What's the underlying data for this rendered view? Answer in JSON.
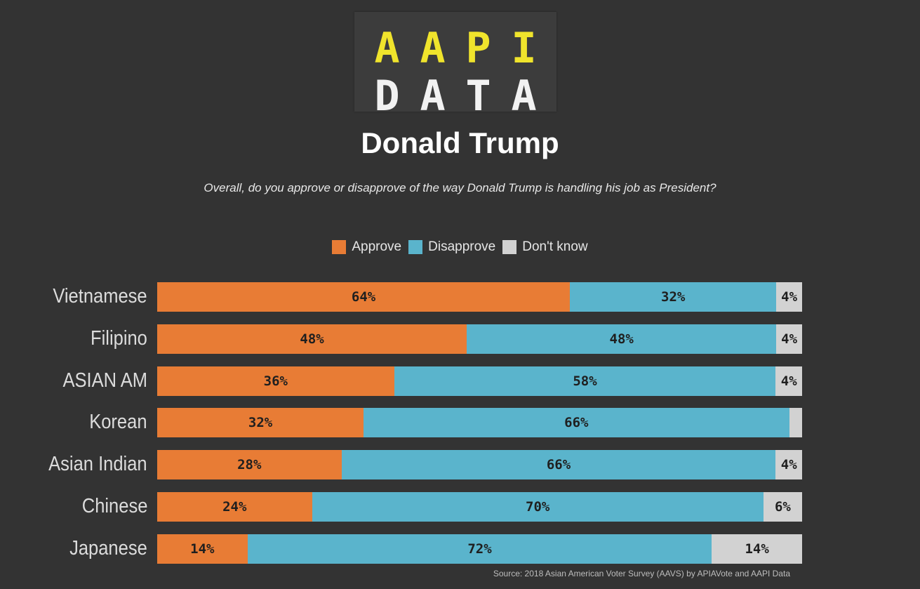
{
  "logo": {
    "top_letters": [
      "A",
      "A",
      "P",
      "I"
    ],
    "bottom_letters": [
      "D",
      "A",
      "T",
      "A"
    ]
  },
  "header": {
    "title": "Donald Trump",
    "subtitle": "Overall, do you approve or disapprove of the way Donald Trump is handling his job as President?"
  },
  "legend": [
    {
      "label": "Approve",
      "color": "#e87c35"
    },
    {
      "label": "Disapprove",
      "color": "#5ab4cc"
    },
    {
      "label": "Don't know",
      "color": "#d2d2d2"
    }
  ],
  "footer": {
    "source": "Source: 2018 Asian American Voter Survey (AAVS) by APIAVote and AAPI Data"
  },
  "chart_data": {
    "type": "bar",
    "orientation": "horizontal",
    "stacked": true,
    "title": "Donald Trump",
    "categories": [
      "Vietnamese",
      "Filipino",
      "ASIAN AM",
      "Korean",
      "Asian Indian",
      "Chinese",
      "Japanese"
    ],
    "series": [
      {
        "name": "Approve",
        "color": "#e87c35",
        "values": [
          64,
          48,
          36,
          32,
          28,
          24,
          14
        ],
        "labels": [
          "64%",
          "48%",
          "36%",
          "32%",
          "28%",
          "24%",
          "14%"
        ]
      },
      {
        "name": "Disapprove",
        "color": "#5ab4cc",
        "values": [
          32,
          48,
          58,
          66,
          66,
          70,
          72
        ],
        "labels": [
          "32%",
          "48%",
          "58%",
          "66%",
          "66%",
          "70%",
          "72%"
        ]
      },
      {
        "name": "Don't know",
        "color": "#d2d2d2",
        "values": [
          4,
          4,
          4,
          2,
          4,
          6,
          14
        ],
        "labels": [
          "4%",
          "4%",
          "4%",
          "",
          "4%",
          "6%",
          "14%"
        ]
      }
    ],
    "xlim": [
      0,
      100
    ],
    "legend_position": "top-center",
    "grid": false
  }
}
